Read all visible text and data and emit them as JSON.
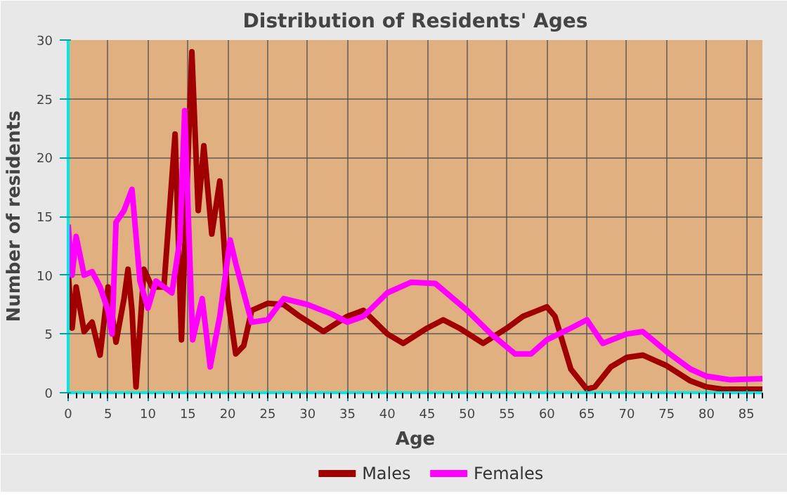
{
  "chart_data": {
    "type": "line",
    "title": "Distribution of Residents' Ages",
    "xlabel": "Age",
    "ylabel": "Number of residents",
    "xlim": [
      0,
      87
    ],
    "ylim": [
      0,
      30
    ],
    "xticks": [
      0,
      5,
      10,
      15,
      20,
      25,
      30,
      35,
      40,
      45,
      50,
      55,
      60,
      65,
      70,
      75,
      80,
      85
    ],
    "yticks": [
      0,
      5,
      10,
      15,
      20,
      25,
      30
    ],
    "grid": true,
    "legend": "bottom",
    "marker": "none",
    "line_style": "solid",
    "series": [
      {
        "name": "Males",
        "color": "#a00000",
        "x": [
          0,
          0.5,
          1,
          2,
          3,
          4,
          5,
          6,
          7,
          7.5,
          8,
          8.5,
          9.5,
          10.5,
          12,
          13.4,
          14.2,
          15.5,
          16.3,
          17,
          18,
          19,
          20,
          21,
          22,
          23,
          25,
          27,
          29,
          32,
          35,
          37,
          40,
          42,
          45,
          47,
          49,
          52,
          55,
          57,
          60,
          61,
          63,
          65,
          66,
          68,
          70,
          72,
          75,
          78,
          80,
          82,
          87
        ],
        "values": [
          10.3,
          5.5,
          9,
          5.2,
          6,
          3.2,
          9,
          4.3,
          8,
          10.5,
          7,
          0.5,
          10.5,
          9,
          9,
          22,
          4.5,
          29,
          15.5,
          21,
          13.5,
          18,
          8,
          3.3,
          4,
          7,
          7.6,
          7.5,
          6.5,
          5.2,
          6.5,
          7,
          5,
          4.2,
          5.5,
          6.2,
          5.5,
          4.2,
          5.5,
          6.5,
          7.3,
          6.5,
          2,
          0.3,
          0.5,
          2.2,
          3,
          3.2,
          2.3,
          1,
          0.5,
          0.3,
          0.3
        ]
      },
      {
        "name": "Females",
        "color": "#ff00ff",
        "x": [
          0,
          0.5,
          1,
          2,
          3,
          4,
          5,
          5.5,
          6,
          7,
          8,
          9,
          10,
          11,
          12,
          13,
          14,
          14.6,
          15.6,
          16.8,
          17.8,
          19,
          20.3,
          21,
          23,
          25,
          27,
          30,
          33,
          35,
          37,
          40,
          43,
          46,
          50,
          53,
          56,
          58,
          60,
          63,
          65,
          67,
          70,
          72,
          75,
          78,
          80,
          83,
          87
        ],
        "values": [
          14.3,
          10,
          13.3,
          10,
          10.3,
          9,
          7,
          5,
          14.5,
          15.5,
          17.3,
          9.5,
          7.2,
          9.5,
          9,
          8.5,
          13,
          24,
          4.5,
          8,
          2.2,
          6.5,
          13,
          11,
          6,
          6.2,
          8,
          7.5,
          6.7,
          6,
          6.5,
          8.5,
          9.4,
          9.3,
          7,
          5,
          3.3,
          3.3,
          4.5,
          5.5,
          6.2,
          4.2,
          5,
          5.2,
          3.5,
          2,
          1.4,
          1.1,
          1.2
        ]
      }
    ]
  }
}
